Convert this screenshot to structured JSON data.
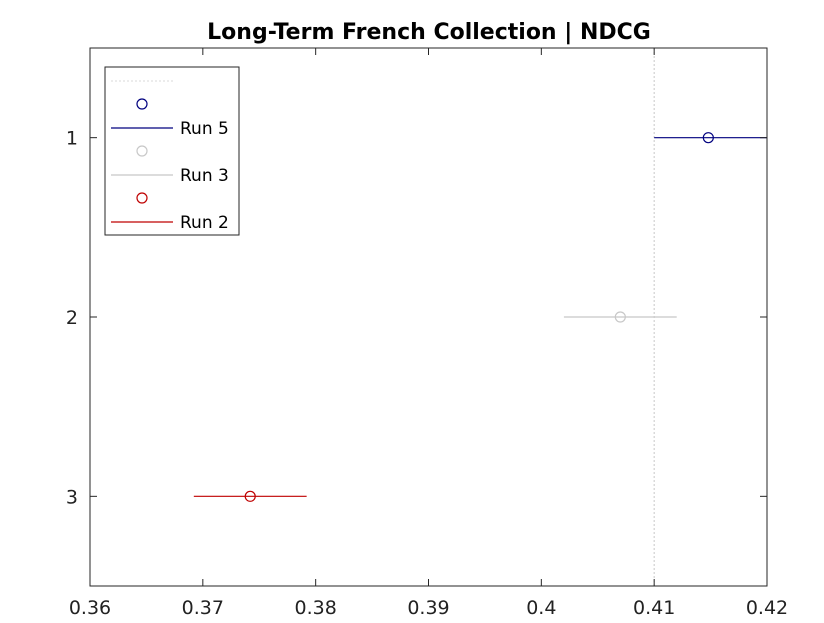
{
  "chart_data": {
    "type": "scatter",
    "title": "Long-Term French Collection | NDCG",
    "xlabel": "",
    "ylabel": "",
    "xlim": [
      0.36,
      0.42
    ],
    "ylim": [
      0.5,
      3.5
    ],
    "y_reversed": true,
    "x_ticks": [
      0.36,
      0.37,
      0.38,
      0.39,
      0.4,
      0.41,
      0.42
    ],
    "x_tick_labels": [
      "0.36",
      "0.37",
      "0.38",
      "0.39",
      "0.4",
      "0.41",
      "0.42"
    ],
    "y_ticks": [
      1,
      2,
      3
    ],
    "y_tick_labels": [
      "1",
      "2",
      "3"
    ],
    "grid": false,
    "reference_line_x": 0.41,
    "legend_position": "top-left",
    "series": [
      {
        "name": "Run 5",
        "rank": 1,
        "x": 0.4148,
        "interval": [
          0.41,
          0.42
        ],
        "color": "#00007f"
      },
      {
        "name": "Run 3",
        "rank": 2,
        "x": 0.407,
        "interval": [
          0.402,
          0.412
        ],
        "color": "#c8c8c8"
      },
      {
        "name": "Run 2",
        "rank": 3,
        "x": 0.3742,
        "interval": [
          0.3692,
          0.3792
        ],
        "color": "#bf0000"
      }
    ]
  }
}
